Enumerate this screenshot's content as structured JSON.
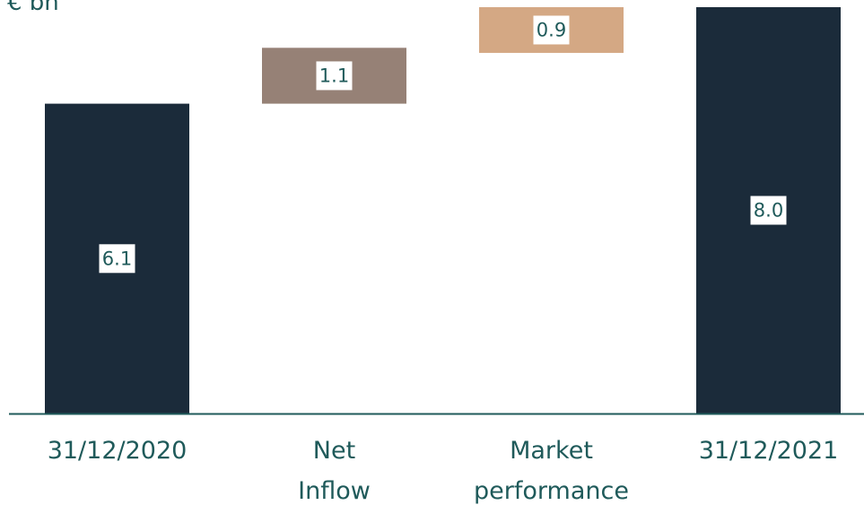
{
  "chart_data": {
    "type": "bar",
    "subtype": "waterfall",
    "unit_label": "€ bn",
    "categories": [
      [
        "31/12/2020"
      ],
      [
        "Net",
        "Inflow"
      ],
      [
        "Market",
        "performance"
      ],
      [
        "31/12/2021"
      ]
    ],
    "bars": [
      {
        "category": "31/12/2020",
        "base": 0,
        "value": 6.1,
        "label": "6.1",
        "kind": "total"
      },
      {
        "category": "Net Inflow",
        "base": 6.1,
        "value": 1.1,
        "label": "1.1",
        "kind": "increase"
      },
      {
        "category": "Market performance",
        "base": 7.1,
        "value": 0.9,
        "label": "0.9",
        "kind": "increase"
      },
      {
        "category": "31/12/2021",
        "base": 0,
        "value": 8.0,
        "label": "8.0",
        "kind": "total"
      }
    ],
    "ylim": [
      0,
      8.0
    ],
    "grid": false,
    "legend": "none",
    "colors": {
      "total": "#1b2b3a",
      "net_inflow": "#968176",
      "market_performance": "#d4a884",
      "axis": "#1f5a5a",
      "text": "#1f5a5a"
    }
  }
}
